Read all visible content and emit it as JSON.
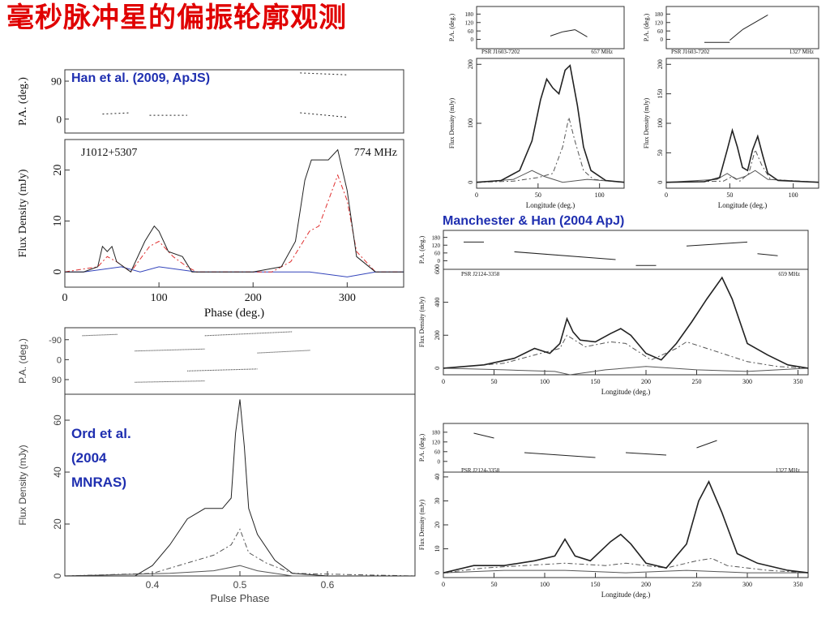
{
  "slide": {
    "title": "毫秒脉冲星的偏振轮廓观测",
    "citations": {
      "han": "Han et al. (2009, ApJS)",
      "manchester": "Manchester & Han (2004 ApJ)",
      "ord": [
        "Ord et al.",
        "(2004",
        "MNRAS)"
      ]
    }
  },
  "chart_data": [
    {
      "type": "line",
      "id": "han2009",
      "label_psr": "J1012+5307",
      "label_freq": "774 MHz",
      "pa_ylabel": "P.A. (deg.)",
      "pa_ticks": [
        0,
        90
      ],
      "ylabel": "Flux Density (mJy)",
      "xlabel": "Phase (deg.)",
      "xlim": [
        0,
        360
      ],
      "ylim": [
        -3,
        26
      ],
      "xticks": [
        0,
        100,
        200,
        300
      ],
      "yticks": [
        0,
        10,
        20
      ],
      "colors": {
        "total": "#222222",
        "linear": "#e03030",
        "circular": "#3344bb"
      },
      "total": [
        [
          0,
          0
        ],
        [
          20,
          0
        ],
        [
          35,
          1
        ],
        [
          40,
          5
        ],
        [
          45,
          4
        ],
        [
          50,
          5
        ],
        [
          55,
          2
        ],
        [
          70,
          0
        ],
        [
          85,
          6
        ],
        [
          95,
          9
        ],
        [
          100,
          8
        ],
        [
          110,
          4
        ],
        [
          125,
          3
        ],
        [
          135,
          0
        ],
        [
          200,
          0
        ],
        [
          230,
          1
        ],
        [
          245,
          6
        ],
        [
          255,
          18
        ],
        [
          262,
          22
        ],
        [
          270,
          22
        ],
        [
          280,
          22
        ],
        [
          290,
          24
        ],
        [
          300,
          16
        ],
        [
          310,
          3
        ],
        [
          330,
          0
        ],
        [
          360,
          0
        ]
      ],
      "linear": [
        [
          0,
          0
        ],
        [
          35,
          1
        ],
        [
          45,
          3
        ],
        [
          55,
          2
        ],
        [
          70,
          0
        ],
        [
          90,
          5
        ],
        [
          100,
          6
        ],
        [
          115,
          3
        ],
        [
          130,
          1
        ],
        [
          140,
          0
        ],
        [
          220,
          0
        ],
        [
          240,
          2
        ],
        [
          260,
          8
        ],
        [
          270,
          9
        ],
        [
          290,
          19
        ],
        [
          300,
          14
        ],
        [
          310,
          4
        ],
        [
          330,
          0
        ],
        [
          360,
          0
        ]
      ],
      "circular": [
        [
          0,
          0
        ],
        [
          20,
          0
        ],
        [
          60,
          1
        ],
        [
          80,
          0
        ],
        [
          100,
          1
        ],
        [
          140,
          0
        ],
        [
          200,
          0
        ],
        [
          260,
          0
        ],
        [
          300,
          -1
        ],
        [
          330,
          0
        ],
        [
          360,
          0
        ]
      ]
    },
    {
      "type": "line",
      "id": "ord2004",
      "pa_ylabel": "P.A. (deg.)",
      "pa_ticks": [
        90,
        0,
        -90
      ],
      "ylabel": "Flux Density (mJy)",
      "xlabel": "Pulse Phase",
      "xlim": [
        0.3,
        0.7
      ],
      "ylim": [
        0,
        70
      ],
      "xticks": [
        0.4,
        0.5,
        0.6
      ],
      "yticks": [
        0,
        20,
        40,
        60
      ],
      "total": [
        [
          0.3,
          0
        ],
        [
          0.38,
          0
        ],
        [
          0.4,
          4
        ],
        [
          0.42,
          12
        ],
        [
          0.44,
          22
        ],
        [
          0.46,
          26
        ],
        [
          0.48,
          26
        ],
        [
          0.49,
          30
        ],
        [
          0.495,
          55
        ],
        [
          0.5,
          68
        ],
        [
          0.505,
          50
        ],
        [
          0.51,
          26
        ],
        [
          0.52,
          16
        ],
        [
          0.54,
          6
        ],
        [
          0.56,
          1
        ],
        [
          0.6,
          0
        ],
        [
          0.7,
          0
        ]
      ],
      "linear": [
        [
          0.3,
          0
        ],
        [
          0.4,
          1
        ],
        [
          0.44,
          5
        ],
        [
          0.47,
          8
        ],
        [
          0.49,
          12
        ],
        [
          0.5,
          18
        ],
        [
          0.51,
          9
        ],
        [
          0.53,
          5
        ],
        [
          0.56,
          1
        ],
        [
          0.7,
          0
        ]
      ],
      "circular": [
        [
          0.3,
          0
        ],
        [
          0.42,
          1
        ],
        [
          0.47,
          2
        ],
        [
          0.5,
          4
        ],
        [
          0.52,
          2
        ],
        [
          0.56,
          0
        ],
        [
          0.7,
          0
        ]
      ]
    },
    {
      "type": "line",
      "id": "j1603_657",
      "label_psr": "PSR J1603-7202",
      "label_freq": "657 MHz",
      "pa_ylabel": "P.A. (deg.)",
      "pa_ticks": [
        0,
        60,
        120,
        180
      ],
      "ylabel": "Flux Density (mJy)",
      "xlabel": "Longitude (deg.)",
      "xlim": [
        0,
        120
      ],
      "ylim": [
        -10,
        210
      ],
      "xticks": [
        0,
        50,
        100
      ],
      "yticks": [
        0,
        100,
        200
      ],
      "total": [
        [
          0,
          0
        ],
        [
          20,
          3
        ],
        [
          35,
          20
        ],
        [
          45,
          70
        ],
        [
          52,
          140
        ],
        [
          57,
          175
        ],
        [
          62,
          160
        ],
        [
          67,
          150
        ],
        [
          72,
          190
        ],
        [
          76,
          198
        ],
        [
          82,
          130
        ],
        [
          87,
          60
        ],
        [
          93,
          20
        ],
        [
          105,
          3
        ],
        [
          120,
          0
        ]
      ],
      "linear": [
        [
          0,
          0
        ],
        [
          30,
          2
        ],
        [
          50,
          8
        ],
        [
          62,
          15
        ],
        [
          70,
          60
        ],
        [
          75,
          110
        ],
        [
          80,
          70
        ],
        [
          87,
          20
        ],
        [
          95,
          5
        ],
        [
          120,
          0
        ]
      ],
      "circular": [
        [
          0,
          0
        ],
        [
          30,
          5
        ],
        [
          45,
          20
        ],
        [
          55,
          10
        ],
        [
          70,
          0
        ],
        [
          90,
          5
        ],
        [
          120,
          0
        ]
      ]
    },
    {
      "type": "line",
      "id": "j1603_1327",
      "label_psr": "PSR J1603-7202",
      "label_freq": "1327 MHz",
      "pa_ylabel": "P.A. (deg.)",
      "pa_ticks": [
        0,
        60,
        120,
        180
      ],
      "ylabel": "Flux Density (mJy)",
      "xlabel": "Longitude (deg.)",
      "xlim": [
        0,
        120
      ],
      "ylim": [
        -10,
        210
      ],
      "xticks": [
        0,
        50,
        100
      ],
      "yticks": [
        0,
        50,
        100,
        150,
        200
      ],
      "total": [
        [
          0,
          0
        ],
        [
          30,
          1
        ],
        [
          42,
          8
        ],
        [
          48,
          55
        ],
        [
          52,
          88
        ],
        [
          56,
          60
        ],
        [
          60,
          25
        ],
        [
          64,
          20
        ],
        [
          68,
          55
        ],
        [
          72,
          78
        ],
        [
          76,
          45
        ],
        [
          80,
          15
        ],
        [
          88,
          3
        ],
        [
          120,
          0
        ]
      ],
      "linear": [
        [
          0,
          0
        ],
        [
          45,
          2
        ],
        [
          52,
          10
        ],
        [
          58,
          2
        ],
        [
          65,
          15
        ],
        [
          70,
          55
        ],
        [
          75,
          30
        ],
        [
          82,
          5
        ],
        [
          120,
          0
        ]
      ],
      "circular": [
        [
          0,
          0
        ],
        [
          40,
          5
        ],
        [
          48,
          15
        ],
        [
          55,
          5
        ],
        [
          62,
          10
        ],
        [
          70,
          20
        ],
        [
          80,
          5
        ],
        [
          120,
          0
        ]
      ]
    },
    {
      "type": "line",
      "id": "j2124_659",
      "label_psr": "PSR J2124-3358",
      "label_freq": "659 MHz",
      "pa_ylabel": "P.A. (deg.)",
      "pa_ticks": [
        0,
        60,
        120,
        180
      ],
      "ylabel": "Flux Density (mJy)",
      "xlabel": "Longitude (deg.)",
      "xlim": [
        0,
        360
      ],
      "ylim": [
        -40,
        600
      ],
      "xticks": [
        0,
        50,
        100,
        150,
        200,
        250,
        300,
        350
      ],
      "yticks": [
        0,
        200,
        400,
        600
      ],
      "total": [
        [
          0,
          0
        ],
        [
          40,
          20
        ],
        [
          70,
          60
        ],
        [
          90,
          120
        ],
        [
          105,
          90
        ],
        [
          115,
          150
        ],
        [
          122,
          300
        ],
        [
          128,
          220
        ],
        [
          135,
          170
        ],
        [
          150,
          160
        ],
        [
          165,
          210
        ],
        [
          175,
          240
        ],
        [
          185,
          200
        ],
        [
          200,
          90
        ],
        [
          215,
          50
        ],
        [
          230,
          150
        ],
        [
          245,
          280
        ],
        [
          260,
          420
        ],
        [
          275,
          550
        ],
        [
          285,
          420
        ],
        [
          300,
          150
        ],
        [
          320,
          80
        ],
        [
          340,
          20
        ],
        [
          360,
          0
        ]
      ],
      "linear": [
        [
          0,
          0
        ],
        [
          60,
          30
        ],
        [
          90,
          80
        ],
        [
          115,
          120
        ],
        [
          122,
          200
        ],
        [
          140,
          130
        ],
        [
          165,
          160
        ],
        [
          180,
          150
        ],
        [
          205,
          50
        ],
        [
          230,
          120
        ],
        [
          240,
          160
        ],
        [
          260,
          120
        ],
        [
          280,
          80
        ],
        [
          300,
          40
        ],
        [
          330,
          10
        ],
        [
          360,
          0
        ]
      ],
      "circular": [
        [
          0,
          0
        ],
        [
          60,
          -10
        ],
        [
          110,
          -20
        ],
        [
          125,
          -40
        ],
        [
          160,
          -10
        ],
        [
          200,
          10
        ],
        [
          250,
          -10
        ],
        [
          300,
          -20
        ],
        [
          360,
          0
        ]
      ]
    },
    {
      "type": "line",
      "id": "j2124_1327",
      "label_psr": "PSR J2124-3358",
      "label_freq": "1327 MHz",
      "pa_ylabel": "P.A. (deg.)",
      "pa_ticks": [
        0,
        60,
        120,
        180
      ],
      "ylabel": "Flux Density (mJy)",
      "xlabel": "Longitude (deg.)",
      "xlim": [
        0,
        360
      ],
      "ylim": [
        -2,
        42
      ],
      "xticks": [
        0,
        50,
        100,
        150,
        200,
        250,
        300,
        350
      ],
      "yticks": [
        0,
        10,
        20,
        30,
        40
      ],
      "total": [
        [
          0,
          0
        ],
        [
          30,
          3
        ],
        [
          60,
          3
        ],
        [
          90,
          5
        ],
        [
          110,
          7
        ],
        [
          120,
          14
        ],
        [
          130,
          7
        ],
        [
          145,
          5
        ],
        [
          165,
          13
        ],
        [
          175,
          16
        ],
        [
          185,
          12
        ],
        [
          200,
          4
        ],
        [
          220,
          2
        ],
        [
          240,
          12
        ],
        [
          252,
          30
        ],
        [
          262,
          38
        ],
        [
          275,
          25
        ],
        [
          290,
          8
        ],
        [
          310,
          4
        ],
        [
          340,
          1
        ],
        [
          360,
          0
        ]
      ],
      "linear": [
        [
          0,
          0
        ],
        [
          40,
          2
        ],
        [
          80,
          3
        ],
        [
          120,
          4
        ],
        [
          160,
          3
        ],
        [
          180,
          4
        ],
        [
          220,
          2
        ],
        [
          250,
          5
        ],
        [
          265,
          6
        ],
        [
          280,
          3
        ],
        [
          320,
          1
        ],
        [
          360,
          0
        ]
      ],
      "circular": [
        [
          0,
          0
        ],
        [
          60,
          1
        ],
        [
          120,
          1
        ],
        [
          180,
          0
        ],
        [
          240,
          1
        ],
        [
          300,
          0
        ],
        [
          360,
          0
        ]
      ]
    }
  ]
}
